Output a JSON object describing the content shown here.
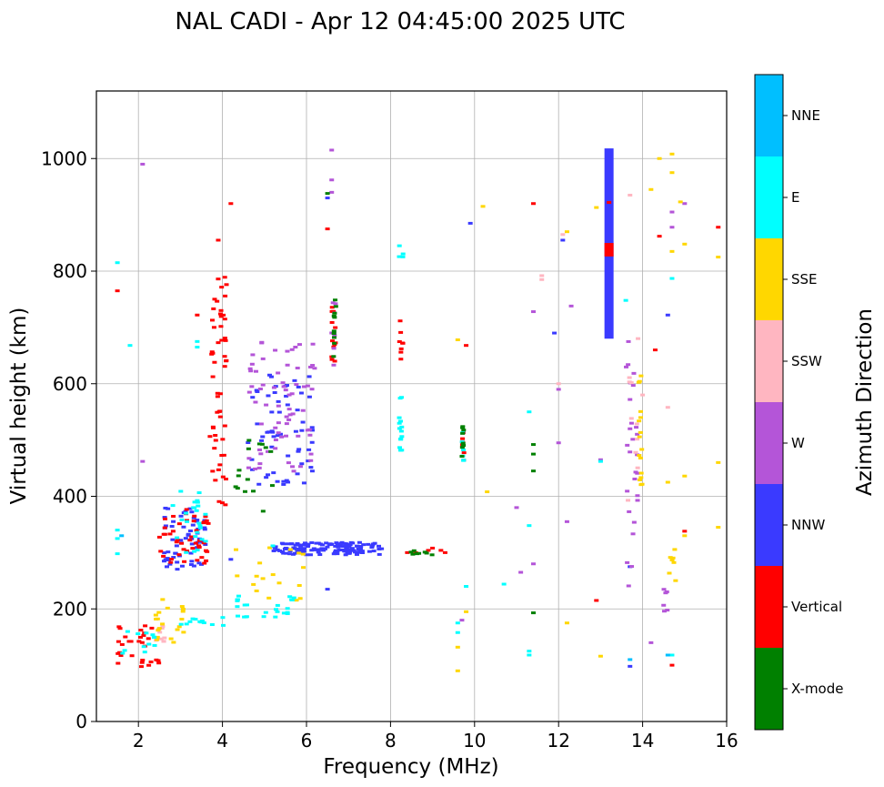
{
  "chart_data": {
    "type": "scatter",
    "title": "NAL CADI - Apr 12 04:45:00 2025 UTC",
    "xlabel": "Frequency (MHz)",
    "ylabel": "Virtual height (km)",
    "xlim": [
      1,
      16
    ],
    "ylim": [
      0,
      1120
    ],
    "xticks": [
      2,
      4,
      6,
      8,
      10,
      12,
      14,
      16
    ],
    "yticks": [
      0,
      200,
      400,
      600,
      800,
      1000
    ],
    "grid": true,
    "colorbar": {
      "label": "Azimuth Direction",
      "categories": [
        "X-mode",
        "Vertical",
        "NNW",
        "W",
        "SSW",
        "SSE",
        "E",
        "NNE"
      ],
      "colors": [
        "#008000",
        "#ff0000",
        "#3a3aff",
        "#b455d8",
        "#ffb6c1",
        "#ffd700",
        "#00ffff",
        "#00bfff"
      ]
    },
    "series": [
      {
        "name": "NNW",
        "clusters": [
          {
            "freq_range": [
              5.2,
              7.8
            ],
            "height_range": [
              296,
              318
            ],
            "count": 140
          },
          {
            "freq_range": [
              2.6,
              3.6
            ],
            "height_range": [
              270,
              380
            ],
            "count": 60
          },
          {
            "freq_range": [
              4.6,
              6.2
            ],
            "height_range": [
              420,
              620
            ],
            "count": 60
          }
        ],
        "segments": [
          {
            "freq": 13.2,
            "h_start": 680,
            "h_end": 1018
          }
        ],
        "points": [
          [
            6.5,
            235
          ],
          [
            13.7,
            98
          ],
          [
            13.7,
            275
          ],
          [
            14.6,
            722
          ],
          [
            6.5,
            930
          ],
          [
            9.9,
            885
          ],
          [
            12.1,
            855
          ],
          [
            11.9,
            690
          ],
          [
            4.2,
            288
          ]
        ]
      },
      {
        "name": "Vertical",
        "clusters": [
          {
            "freq_range": [
              3.7,
              4.1
            ],
            "height_range": [
              380,
              790
            ],
            "count": 55
          },
          {
            "freq_range": [
              2.5,
              3.7
            ],
            "height_range": [
              280,
              380
            ],
            "count": 45
          },
          {
            "freq_range": [
              1.5,
              2.6
            ],
            "height_range": [
              95,
              175
            ],
            "count": 30
          },
          {
            "freq_range": [
              6.6,
              6.7
            ],
            "height_range": [
              640,
              760
            ],
            "count": 12
          },
          {
            "freq_range": [
              8.2,
              8.3
            ],
            "height_range": [
              640,
              720
            ],
            "count": 8
          },
          {
            "freq_range": [
              9.7,
              9.75
            ],
            "height_range": [
              450,
              520
            ],
            "count": 8
          }
        ],
        "segments": [
          {
            "freq": 13.2,
            "h_start": 826,
            "h_end": 850
          }
        ],
        "points": [
          [
            8.4,
            300
          ],
          [
            8.6,
            300
          ],
          [
            8.9,
            304
          ],
          [
            9.0,
            308
          ],
          [
            9.2,
            304
          ],
          [
            9.3,
            300
          ],
          [
            4.2,
            920
          ],
          [
            3.9,
            855
          ],
          [
            1.5,
            765
          ],
          [
            6.5,
            875
          ],
          [
            11.4,
            920
          ],
          [
            13.2,
            922
          ],
          [
            12.9,
            215
          ],
          [
            14.3,
            660
          ],
          [
            14.4,
            862
          ],
          [
            15.0,
            338
          ],
          [
            15.8,
            878
          ],
          [
            14.7,
            100
          ],
          [
            3.4,
            722
          ],
          [
            9.8,
            668
          ]
        ]
      },
      {
        "name": "W",
        "clusters": [
          {
            "freq_range": [
              4.6,
              6.2
            ],
            "height_range": [
              440,
              680
            ],
            "count": 70
          },
          {
            "freq_range": [
              6.6,
              6.7
            ],
            "height_range": [
              590,
              770
            ],
            "count": 8
          },
          {
            "freq_range": [
              13.6,
              13.9
            ],
            "height_range": [
              240,
              700
            ],
            "count": 25
          },
          {
            "freq_range": [
              14.5,
              14.7
            ],
            "height_range": [
              170,
              240
            ],
            "count": 6
          }
        ],
        "points": [
          [
            12.0,
            590
          ],
          [
            12.0,
            495
          ],
          [
            12.2,
            355
          ],
          [
            11.4,
            728
          ],
          [
            11.4,
            280
          ],
          [
            11.0,
            380
          ],
          [
            12.3,
            738
          ],
          [
            14.7,
            878
          ],
          [
            15.0,
            920
          ],
          [
            14.7,
            905
          ],
          [
            13.0,
            465
          ],
          [
            14.2,
            140
          ],
          [
            6.6,
            1015
          ],
          [
            6.6,
            962
          ],
          [
            6.6,
            940
          ],
          [
            9.7,
            180
          ],
          [
            11.1,
            265
          ],
          [
            2.1,
            990
          ],
          [
            2.1,
            462
          ],
          [
            13.7,
            520
          ],
          [
            13.7,
            572
          ]
        ]
      },
      {
        "name": "SSW",
        "clusters": [
          {
            "freq_range": [
              2.4,
              2.7
            ],
            "height_range": [
              140,
              170
            ],
            "count": 10
          },
          {
            "freq_range": [
              13.6,
              13.9
            ],
            "height_range": [
              350,
              700
            ],
            "count": 10
          }
        ],
        "points": [
          [
            11.6,
            792
          ],
          [
            12.1,
            865
          ],
          [
            14.6,
            558
          ],
          [
            12.0,
            600
          ],
          [
            14.0,
            580
          ],
          [
            13.7,
            935
          ],
          [
            11.6,
            785
          ]
        ]
      },
      {
        "name": "SSE",
        "clusters": [
          {
            "freq_range": [
              4.0,
              6.0
            ],
            "height_range": [
              210,
              320
            ],
            "count": 18
          },
          {
            "freq_range": [
              2.4,
              3.1
            ],
            "height_range": [
              140,
              220
            ],
            "count": 20
          },
          {
            "freq_range": [
              13.9,
              14.0
            ],
            "height_range": [
              420,
              620
            ],
            "count": 16
          },
          {
            "freq_range": [
              14.6,
              14.8
            ],
            "height_range": [
              230,
              310
            ],
            "count": 7
          }
        ],
        "points": [
          [
            12.9,
            913
          ],
          [
            13.0,
            116
          ],
          [
            14.2,
            945
          ],
          [
            14.4,
            1000
          ],
          [
            14.7,
            1008
          ],
          [
            14.7,
            975
          ],
          [
            14.7,
            835
          ],
          [
            15.0,
            848
          ],
          [
            15.8,
            825
          ],
          [
            15.8,
            460
          ],
          [
            15.8,
            345
          ],
          [
            15.0,
            330
          ],
          [
            15.0,
            436
          ],
          [
            14.6,
            425
          ],
          [
            10.3,
            408
          ],
          [
            12.2,
            175
          ],
          [
            12.2,
            870
          ],
          [
            9.6,
            678
          ],
          [
            9.6,
            132
          ],
          [
            9.6,
            90
          ],
          [
            9.8,
            195
          ],
          [
            10.2,
            915
          ],
          [
            14.9,
            923
          ]
        ]
      },
      {
        "name": "E",
        "clusters": [
          {
            "freq_range": [
              4.3,
              5.8
            ],
            "height_range": [
              185,
              225
            ],
            "count": 25
          },
          {
            "freq_range": [
              3.0,
              4.2
            ],
            "height_range": [
              170,
              185
            ],
            "count": 12
          },
          {
            "freq_range": [
              1.5,
              2.4
            ],
            "height_range": [
              120,
              160
            ],
            "count": 12
          },
          {
            "freq_range": [
              8.2,
              8.3
            ],
            "height_range": [
              470,
              580
            ],
            "count": 14
          },
          {
            "freq_range": [
              8.2,
              8.3
            ],
            "height_range": [
              820,
              850
            ],
            "count": 4
          },
          {
            "freq_range": [
              9.7,
              9.75
            ],
            "height_range": [
              460,
              520
            ],
            "count": 6
          },
          {
            "freq_range": [
              2.7,
              3.6
            ],
            "height_range": [
              300,
              420
            ],
            "count": 25
          }
        ],
        "points": [
          [
            1.5,
            340
          ],
          [
            1.5,
            325
          ],
          [
            1.5,
            298
          ],
          [
            1.5,
            815
          ],
          [
            1.8,
            668
          ],
          [
            3.4,
            675
          ],
          [
            3.4,
            665
          ],
          [
            9.6,
            175
          ],
          [
            9.6,
            158
          ],
          [
            11.3,
            550
          ],
          [
            11.3,
            348
          ],
          [
            11.3,
            125
          ],
          [
            11.3,
            118
          ],
          [
            10.7,
            244
          ],
          [
            9.8,
            240
          ],
          [
            13.0,
            462
          ],
          [
            14.7,
            787
          ],
          [
            14.7,
            118
          ],
          [
            13.6,
            748
          ],
          [
            5.2,
            312
          ]
        ]
      },
      {
        "name": "X-mode",
        "clusters": [
          {
            "freq_range": [
              4.3,
              5.2
            ],
            "height_range": [
              370,
              520
            ],
            "count": 14
          },
          {
            "freq_range": [
              6.6,
              6.7
            ],
            "height_range": [
              640,
              760
            ],
            "count": 10
          },
          {
            "freq_range": [
              9.7,
              9.75
            ],
            "height_range": [
              470,
              530
            ],
            "count": 8
          },
          {
            "freq_range": [
              8.3,
              9.0
            ],
            "height_range": [
              296,
              304
            ],
            "count": 8
          }
        ],
        "points": [
          [
            11.4,
            492
          ],
          [
            11.4,
            475
          ],
          [
            11.4,
            445
          ],
          [
            11.4,
            193
          ],
          [
            6.5,
            938
          ],
          [
            4.6,
            430
          ]
        ]
      },
      {
        "name": "NNE",
        "points": [
          [
            1.6,
            330
          ],
          [
            14.6,
            118
          ],
          [
            13.7,
            110
          ]
        ]
      }
    ]
  }
}
